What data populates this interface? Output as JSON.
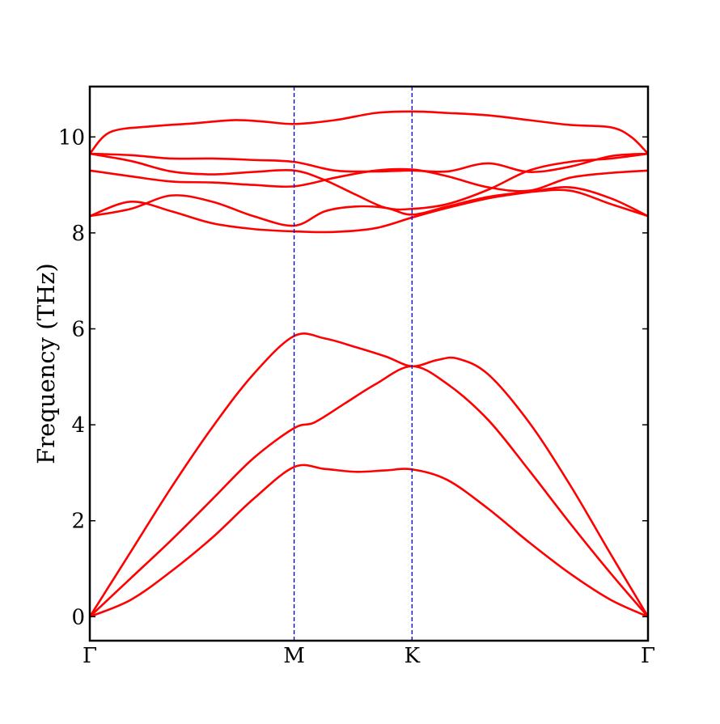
{
  "chart_data": {
    "type": "line",
    "title": "",
    "xlabel": "",
    "ylabel": "Frequency (THz)",
    "xlim": [
      0,
      2.732
    ],
    "ylim": [
      -0.5,
      11.05
    ],
    "grid": false,
    "legend": "none",
    "high_symmetry_points": [
      {
        "label": "Γ",
        "x": 0
      },
      {
        "label": "M",
        "x": 1.0
      },
      {
        "label": "K",
        "x": 1.577
      },
      {
        "label": "Γ",
        "x": 2.732
      }
    ],
    "y_ticks": [
      0,
      2,
      4,
      6,
      8,
      10
    ],
    "colors": {
      "bands": "#ff0000",
      "divider": "#0000cc",
      "axes": "#000000"
    },
    "bands": [
      {
        "x": [
          0,
          0.2,
          0.4,
          0.6,
          0.8,
          1.0,
          1.15,
          1.3,
          1.45,
          1.577,
          1.75,
          1.95,
          2.15,
          2.35,
          2.55,
          2.732
        ],
        "y": [
          0,
          0.35,
          0.95,
          1.65,
          2.45,
          3.12,
          3.08,
          3.02,
          3.05,
          3.07,
          2.85,
          2.25,
          1.55,
          0.9,
          0.35,
          0
        ]
      },
      {
        "x": [
          0,
          0.2,
          0.4,
          0.6,
          0.8,
          1.0,
          1.1,
          1.25,
          1.4,
          1.577,
          1.75,
          1.95,
          2.15,
          2.35,
          2.55,
          2.732
        ],
        "y": [
          0,
          0.8,
          1.6,
          2.45,
          3.3,
          3.93,
          4.05,
          4.45,
          4.85,
          5.22,
          4.85,
          4.1,
          3.05,
          1.95,
          0.9,
          0
        ]
      },
      {
        "x": [
          0,
          0.2,
          0.4,
          0.6,
          0.8,
          1.0,
          1.15,
          1.3,
          1.45,
          1.577,
          1.7,
          1.8,
          1.95,
          2.15,
          2.35,
          2.55,
          2.732
        ],
        "y": [
          0,
          1.35,
          2.7,
          3.95,
          5.05,
          5.85,
          5.8,
          5.62,
          5.42,
          5.22,
          5.35,
          5.38,
          5.05,
          4.05,
          2.75,
          1.3,
          0
        ]
      },
      {
        "x": [
          0,
          0.2,
          0.4,
          0.6,
          0.8,
          1.0,
          1.15,
          1.3,
          1.45,
          1.577,
          1.75,
          1.95,
          2.15,
          2.35,
          2.55,
          2.732
        ],
        "y": [
          8.35,
          8.5,
          8.78,
          8.65,
          8.35,
          8.15,
          8.45,
          8.55,
          8.52,
          8.38,
          8.55,
          8.75,
          8.85,
          8.88,
          8.6,
          8.35
        ]
      },
      {
        "x": [
          0,
          0.2,
          0.4,
          0.6,
          0.8,
          1.0,
          1.2,
          1.4,
          1.577,
          1.75,
          1.95,
          2.15,
          2.35,
          2.55,
          2.732
        ],
        "y": [
          8.35,
          8.65,
          8.45,
          8.2,
          8.08,
          8.03,
          8.02,
          8.1,
          8.32,
          8.52,
          8.72,
          8.85,
          8.95,
          8.72,
          8.35
        ]
      },
      {
        "x": [
          0,
          0.2,
          0.4,
          0.6,
          0.8,
          1.0,
          1.2,
          1.4,
          1.577,
          1.75,
          1.95,
          2.15,
          2.35,
          2.55,
          2.732
        ],
        "y": [
          9.3,
          9.18,
          9.07,
          9.05,
          9.0,
          8.97,
          9.15,
          9.3,
          9.32,
          9.18,
          8.95,
          8.88,
          9.15,
          9.25,
          9.3
        ]
      },
      {
        "x": [
          0,
          0.2,
          0.4,
          0.6,
          0.8,
          1.0,
          1.15,
          1.3,
          1.45,
          1.577,
          1.75,
          1.95,
          2.15,
          2.35,
          2.55,
          2.732
        ],
        "y": [
          9.65,
          9.5,
          9.28,
          9.22,
          9.27,
          9.3,
          9.1,
          8.8,
          8.52,
          8.5,
          8.6,
          8.9,
          9.3,
          9.48,
          9.55,
          9.65
        ]
      },
      {
        "x": [
          0,
          0.2,
          0.4,
          0.6,
          0.8,
          1.0,
          1.2,
          1.4,
          1.577,
          1.75,
          1.95,
          2.15,
          2.35,
          2.55,
          2.732
        ],
        "y": [
          9.65,
          9.62,
          9.55,
          9.55,
          9.52,
          9.48,
          9.3,
          9.28,
          9.3,
          9.28,
          9.45,
          9.27,
          9.38,
          9.6,
          9.65
        ]
      },
      {
        "x": [
          0,
          0.1,
          0.3,
          0.5,
          0.7,
          0.85,
          1.0,
          1.2,
          1.4,
          1.577,
          1.75,
          1.95,
          2.15,
          2.35,
          2.55,
          2.65,
          2.732
        ],
        "y": [
          9.65,
          10.1,
          10.22,
          10.28,
          10.35,
          10.32,
          10.27,
          10.35,
          10.5,
          10.53,
          10.5,
          10.45,
          10.35,
          10.25,
          10.2,
          10.0,
          9.65
        ]
      }
    ]
  }
}
